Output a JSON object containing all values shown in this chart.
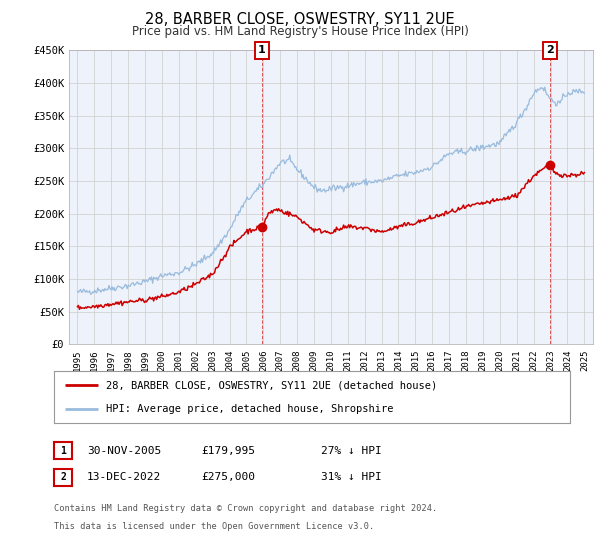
{
  "title": "28, BARBER CLOSE, OSWESTRY, SY11 2UE",
  "subtitle": "Price paid vs. HM Land Registry's House Price Index (HPI)",
  "legend_line1": "28, BARBER CLOSE, OSWESTRY, SY11 2UE (detached house)",
  "legend_line2": "HPI: Average price, detached house, Shropshire",
  "footnote1": "Contains HM Land Registry data © Crown copyright and database right 2024.",
  "footnote2": "This data is licensed under the Open Government Licence v3.0.",
  "marker1_date": "30-NOV-2005",
  "marker1_price": "£179,995",
  "marker1_hpi": "27% ↓ HPI",
  "marker2_date": "13-DEC-2022",
  "marker2_price": "£275,000",
  "marker2_hpi": "31% ↓ HPI",
  "red_color": "#cc0000",
  "blue_color": "#99bbdd",
  "grid_color": "#cccccc",
  "bg_color": "#ffffff",
  "plot_bg_color": "#eef2fa",
  "marker1_x": 2005.92,
  "marker1_y": 179995,
  "marker2_x": 2022.96,
  "marker2_y": 275000,
  "ylim_max": 450000,
  "ylim_min": 0,
  "xlim_min": 1994.5,
  "xlim_max": 2025.5,
  "yticks": [
    0,
    50000,
    100000,
    150000,
    200000,
    250000,
    300000,
    350000,
    400000,
    450000
  ],
  "ytick_labels": [
    "£0",
    "£50K",
    "£100K",
    "£150K",
    "£200K",
    "£250K",
    "£300K",
    "£350K",
    "£400K",
    "£450K"
  ],
  "xticks": [
    1995,
    1996,
    1997,
    1998,
    1999,
    2000,
    2001,
    2002,
    2003,
    2004,
    2005,
    2006,
    2007,
    2008,
    2009,
    2010,
    2011,
    2012,
    2013,
    2014,
    2015,
    2016,
    2017,
    2018,
    2019,
    2020,
    2021,
    2022,
    2023,
    2024,
    2025
  ]
}
